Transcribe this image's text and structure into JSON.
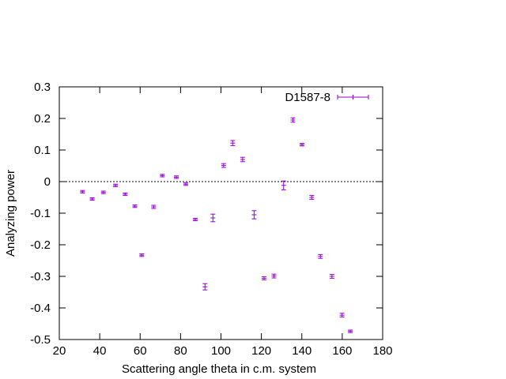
{
  "chart_data": {
    "type": "scatter",
    "title": "",
    "xlabel": "Scattering angle theta in c.m. system",
    "ylabel": "Analyzing power",
    "xlim": [
      20,
      180
    ],
    "ylim": [
      -0.5,
      0.3
    ],
    "xticks": [
      20,
      40,
      60,
      80,
      100,
      120,
      140,
      160,
      180
    ],
    "yticks": [
      0.3,
      0.2,
      0.1,
      0,
      -0.1,
      -0.2,
      -0.3,
      -0.4,
      -0.5
    ],
    "zero_line": true,
    "grid": false,
    "legend_position": "top-right",
    "color": "#9400d3",
    "series": [
      {
        "name": "D1587-8",
        "points": [
          {
            "x": 31.5,
            "y": -0.032,
            "err": 0.004
          },
          {
            "x": 36.3,
            "y": -0.055,
            "err": 0.004
          },
          {
            "x": 41.8,
            "y": -0.034,
            "err": 0.004
          },
          {
            "x": 47.8,
            "y": -0.012,
            "err": 0.004
          },
          {
            "x": 52.6,
            "y": -0.04,
            "err": 0.004
          },
          {
            "x": 57.4,
            "y": -0.078,
            "err": 0.004
          },
          {
            "x": 60.8,
            "y": -0.233,
            "err": 0.004
          },
          {
            "x": 66.7,
            "y": -0.08,
            "err": 0.005
          },
          {
            "x": 71.0,
            "y": 0.019,
            "err": 0.004
          },
          {
            "x": 77.9,
            "y": 0.014,
            "err": 0.004
          },
          {
            "x": 82.6,
            "y": -0.008,
            "err": 0.004
          },
          {
            "x": 87.3,
            "y": -0.12,
            "err": 0.004
          },
          {
            "x": 92.1,
            "y": -0.333,
            "err": 0.01
          },
          {
            "x": 96.0,
            "y": -0.115,
            "err": 0.012
          },
          {
            "x": 101.3,
            "y": 0.051,
            "err": 0.006
          },
          {
            "x": 105.8,
            "y": 0.122,
            "err": 0.008
          },
          {
            "x": 110.7,
            "y": 0.07,
            "err": 0.007
          },
          {
            "x": 116.4,
            "y": -0.105,
            "err": 0.013
          },
          {
            "x": 121.3,
            "y": -0.306,
            "err": 0.005
          },
          {
            "x": 126.2,
            "y": -0.299,
            "err": 0.006
          },
          {
            "x": 131.0,
            "y": -0.012,
            "err": 0.014
          },
          {
            "x": 135.6,
            "y": 0.195,
            "err": 0.007
          },
          {
            "x": 140.1,
            "y": 0.117,
            "err": 0.004
          },
          {
            "x": 144.9,
            "y": -0.05,
            "err": 0.006
          },
          {
            "x": 149.2,
            "y": -0.237,
            "err": 0.006
          },
          {
            "x": 154.9,
            "y": -0.3,
            "err": 0.006
          },
          {
            "x": 159.9,
            "y": -0.423,
            "err": 0.006
          },
          {
            "x": 164.0,
            "y": -0.474,
            "err": 0.004
          }
        ]
      }
    ]
  }
}
